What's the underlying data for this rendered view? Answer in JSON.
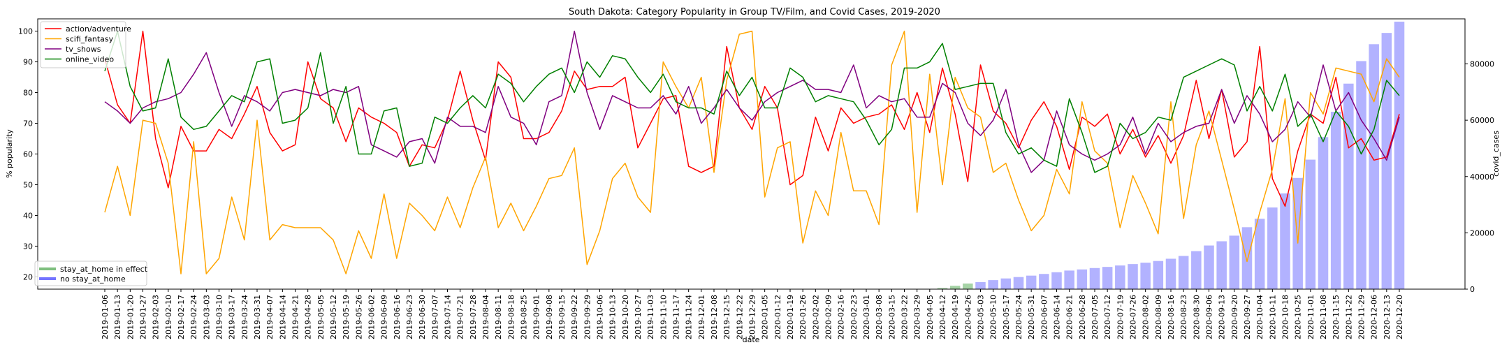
{
  "chart_data": {
    "type": "line",
    "title": "South Dakota: Category Popularity in Group TV/Film, and Covid Cases, 2019-2020",
    "xlabel": "date",
    "ylabel": "% popularity",
    "y2label": "covid_cases",
    "ylim": [
      16,
      104
    ],
    "y2lim": [
      0,
      96000
    ],
    "yticks": [
      20,
      30,
      40,
      50,
      60,
      70,
      80,
      90,
      100
    ],
    "y2ticks": [
      0,
      20000,
      40000,
      60000,
      80000
    ],
    "categories": [
      "2019-01-06",
      "2019-01-13",
      "2019-01-20",
      "2019-01-27",
      "2019-02-03",
      "2019-02-10",
      "2019-02-17",
      "2019-02-24",
      "2019-03-03",
      "2019-03-10",
      "2019-03-17",
      "2019-03-24",
      "2019-03-31",
      "2019-04-07",
      "2019-04-14",
      "2019-04-21",
      "2019-04-28",
      "2019-05-05",
      "2019-05-12",
      "2019-05-19",
      "2019-05-26",
      "2019-06-02",
      "2019-06-09",
      "2019-06-16",
      "2019-06-23",
      "2019-06-30",
      "2019-07-07",
      "2019-07-14",
      "2019-07-21",
      "2019-07-28",
      "2019-08-04",
      "2019-08-11",
      "2019-08-18",
      "2019-08-25",
      "2019-09-01",
      "2019-09-08",
      "2019-09-15",
      "2019-09-22",
      "2019-09-29",
      "2019-10-06",
      "2019-10-13",
      "2019-10-20",
      "2019-10-27",
      "2019-11-03",
      "2019-11-10",
      "2019-11-17",
      "2019-11-24",
      "2019-12-01",
      "2019-12-08",
      "2019-12-15",
      "2019-12-22",
      "2019-12-29",
      "2020-01-05",
      "2020-01-12",
      "2020-01-19",
      "2020-01-26",
      "2020-02-02",
      "2020-02-09",
      "2020-02-16",
      "2020-02-23",
      "2020-03-01",
      "2020-03-08",
      "2020-03-15",
      "2020-03-22",
      "2020-03-29",
      "2020-04-05",
      "2020-04-12",
      "2020-04-19",
      "2020-04-26",
      "2020-05-03",
      "2020-05-10",
      "2020-05-17",
      "2020-05-24",
      "2020-05-31",
      "2020-06-07",
      "2020-06-14",
      "2020-06-21",
      "2020-06-28",
      "2020-07-05",
      "2020-07-12",
      "2020-07-19",
      "2020-07-26",
      "2020-08-02",
      "2020-08-09",
      "2020-08-16",
      "2020-08-23",
      "2020-08-30",
      "2020-09-06",
      "2020-09-13",
      "2020-09-20",
      "2020-09-27",
      "2020-10-04",
      "2020-10-11",
      "2020-10-18",
      "2020-10-25",
      "2020-11-01",
      "2020-11-08",
      "2020-11-15",
      "2020-11-22",
      "2020-11-29",
      "2020-12-06",
      "2020-12-13",
      "2020-12-20"
    ],
    "series": [
      {
        "name": "action/adventure",
        "color": "#ff0000",
        "values": [
          91,
          76,
          70,
          100,
          65,
          49,
          69,
          61,
          61,
          68,
          65,
          73,
          82,
          67,
          61,
          63,
          90,
          78,
          75,
          64,
          75,
          72,
          70,
          67,
          56,
          63,
          62,
          71,
          87,
          71,
          58,
          90,
          85,
          65,
          65,
          67,
          74,
          87,
          81,
          82,
          82,
          85,
          62,
          70,
          78,
          79,
          56,
          54,
          56,
          95,
          75,
          68,
          82,
          75,
          50,
          53,
          72,
          61,
          75,
          70,
          72,
          73,
          76,
          68,
          80,
          67,
          88,
          73,
          51,
          89,
          74,
          70,
          62,
          71,
          77,
          69,
          55,
          72,
          69,
          73,
          60,
          68,
          59,
          66,
          57,
          66,
          84,
          65,
          81,
          59,
          64,
          95,
          52,
          43,
          61,
          73,
          70,
          85,
          62,
          65,
          58,
          59,
          73
        ]
      },
      {
        "name": "scifi_fantasy",
        "color": "#ffa500",
        "values": [
          41,
          56,
          40,
          71,
          70,
          57,
          21,
          64,
          21,
          26,
          46,
          32,
          71,
          32,
          37,
          36,
          36,
          36,
          32,
          21,
          35,
          26,
          47,
          26,
          44,
          40,
          35,
          46,
          36,
          49,
          59,
          36,
          44,
          35,
          43,
          52,
          53,
          62,
          24,
          35,
          52,
          57,
          46,
          41,
          90,
          82,
          75,
          85,
          54,
          84,
          99,
          100,
          46,
          62,
          64,
          31,
          48,
          40,
          67,
          48,
          48,
          37,
          89,
          100,
          41,
          86,
          50,
          85,
          75,
          72,
          54,
          57,
          45,
          35,
          40,
          55,
          47,
          77,
          61,
          57,
          36,
          53,
          44,
          34,
          77,
          39,
          63,
          74,
          58,
          42,
          25,
          41,
          55,
          78,
          31,
          80,
          73,
          88,
          87,
          86,
          77,
          91,
          85
        ]
      },
      {
        "name": "tv_shows",
        "color": "#800080",
        "values": [
          77,
          74,
          70,
          75,
          77,
          78,
          80,
          86,
          93,
          80,
          69,
          79,
          77,
          74,
          80,
          81,
          80,
          79,
          81,
          80,
          82,
          63,
          61,
          59,
          64,
          65,
          57,
          72,
          69,
          69,
          67,
          82,
          72,
          70,
          63,
          77,
          79,
          100,
          80,
          68,
          79,
          77,
          75,
          75,
          79,
          73,
          82,
          70,
          75,
          81,
          75,
          71,
          77,
          80,
          82,
          84,
          81,
          81,
          80,
          89,
          75,
          79,
          77,
          78,
          72,
          72,
          83,
          80,
          70,
          66,
          71,
          81,
          63,
          54,
          58,
          74,
          63,
          60,
          58,
          60,
          63,
          72,
          60,
          70,
          64,
          67,
          69,
          70,
          81,
          70,
          79,
          73,
          64,
          68,
          77,
          72,
          89,
          74,
          80,
          71,
          65,
          58,
          72
        ]
      },
      {
        "name": "online_video",
        "color": "#008000",
        "values": [
          87,
          100,
          82,
          74,
          75,
          91,
          72,
          68,
          69,
          74,
          79,
          77,
          90,
          91,
          70,
          71,
          75,
          93,
          70,
          82,
          60,
          60,
          74,
          75,
          56,
          57,
          72,
          70,
          75,
          79,
          75,
          86,
          83,
          77,
          82,
          86,
          88,
          80,
          90,
          85,
          92,
          91,
          85,
          80,
          86,
          77,
          75,
          75,
          73,
          87,
          79,
          85,
          75,
          75,
          88,
          85,
          77,
          79,
          78,
          77,
          71,
          63,
          68,
          88,
          88,
          90,
          96,
          81,
          82,
          83,
          83,
          67,
          60,
          62,
          58,
          56,
          78,
          67,
          54,
          56,
          70,
          65,
          67,
          72,
          71,
          85,
          87,
          89,
          91,
          89,
          74,
          82,
          74,
          86,
          69,
          73,
          64,
          74,
          69,
          60,
          68,
          84,
          79
        ]
      }
    ],
    "bars": [
      {
        "name": "stay_at_home in effect",
        "color": "#008000",
        "opacity": 0.35,
        "categories": [
          "2020-04-12",
          "2020-04-19",
          "2020-04-26"
        ],
        "values": [
          400,
          1200,
          2000
        ]
      },
      {
        "name": "no stay_at_home",
        "color": "#0000ff",
        "opacity": 0.3,
        "categories": [
          "2020-05-03",
          "2020-05-10",
          "2020-05-17",
          "2020-05-24",
          "2020-05-31",
          "2020-06-07",
          "2020-06-14",
          "2020-06-21",
          "2020-06-28",
          "2020-07-05",
          "2020-07-12",
          "2020-07-19",
          "2020-07-26",
          "2020-08-02",
          "2020-08-09",
          "2020-08-16",
          "2020-08-23",
          "2020-08-30",
          "2020-09-06",
          "2020-09-13",
          "2020-09-20",
          "2020-09-27",
          "2020-10-04",
          "2020-10-11",
          "2020-10-18",
          "2020-10-25",
          "2020-11-01",
          "2020-11-08",
          "2020-11-15",
          "2020-11-22",
          "2020-11-29",
          "2020-12-06",
          "2020-12-13",
          "2020-12-20"
        ],
        "values": [
          2500,
          3200,
          3800,
          4300,
          4800,
          5400,
          6000,
          6600,
          7000,
          7500,
          7900,
          8400,
          8900,
          9400,
          10000,
          10800,
          11800,
          13500,
          15500,
          17000,
          19000,
          22000,
          25000,
          29000,
          34000,
          39500,
          46000,
          54000,
          63000,
          73000,
          81000,
          87000,
          91000,
          95000
        ]
      }
    ],
    "legend": {
      "placement": "top-left",
      "bar_legend_placement": "bottom-left"
    },
    "grid": false
  }
}
